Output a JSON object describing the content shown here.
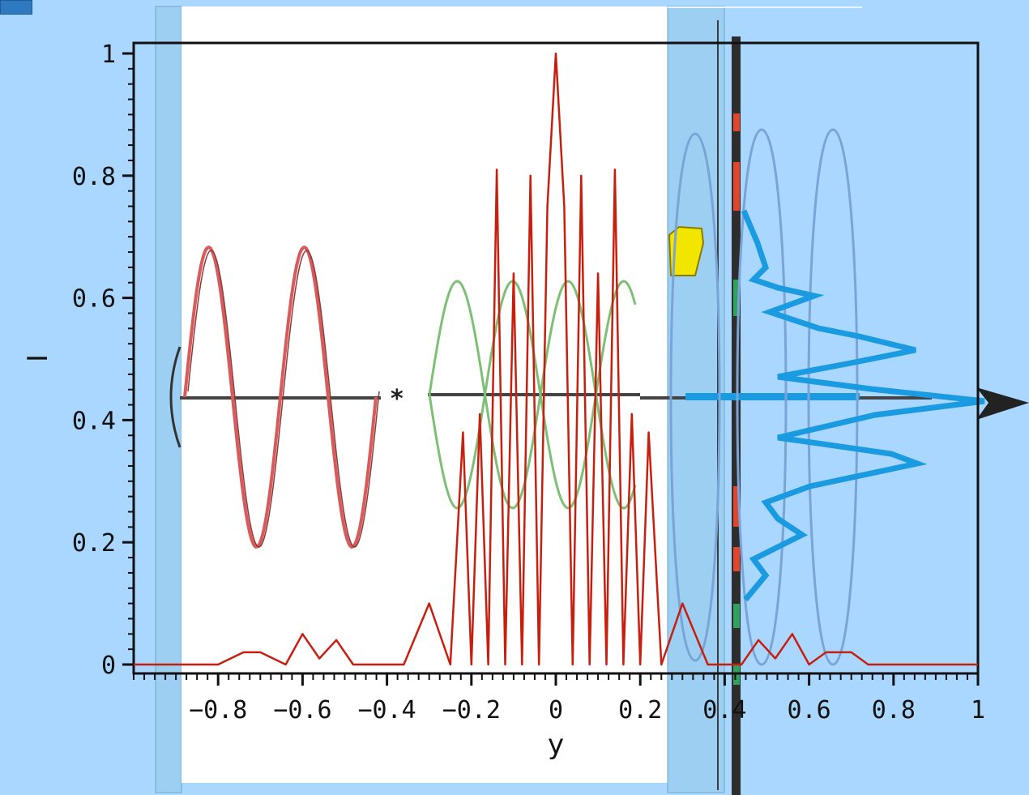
{
  "chart_data": {
    "type": "line",
    "title": "",
    "xlabel": "y",
    "ylabel": "I",
    "xlim": [
      -1,
      1
    ],
    "ylim": [
      0,
      1
    ],
    "x_ticks": [
      -0.8,
      -0.6,
      -0.4,
      -0.2,
      0,
      0.2,
      0.4,
      0.6,
      0.8,
      1
    ],
    "x_tick_labels": [
      "−0.8",
      "−0.6",
      "−0.4",
      "−0.2",
      "0",
      "0.2",
      "0.4",
      "0.6",
      "0.8",
      "1"
    ],
    "y_ticks": [
      0,
      0.2,
      0.4,
      0.6,
      0.8,
      1
    ],
    "y_tick_labels": [
      "0",
      "0.2",
      "0.4",
      "0.6",
      "0.8",
      "1"
    ],
    "grid": false,
    "series": [
      {
        "color": "#c81e0e",
        "x": [
          -1.0,
          -0.8,
          -0.74,
          -0.7,
          -0.64,
          -0.6,
          -0.56,
          -0.52,
          -0.48,
          -0.44,
          -0.36,
          -0.3,
          -0.25,
          -0.22,
          -0.2,
          -0.18,
          -0.16,
          -0.14,
          -0.12,
          -0.1,
          -0.08,
          -0.06,
          -0.04,
          -0.02,
          0,
          0.02,
          0.04,
          0.06,
          0.08,
          0.1,
          0.12,
          0.14,
          0.16,
          0.18,
          0.2,
          0.22,
          0.25,
          0.3,
          0.36,
          0.44,
          0.48,
          0.52,
          0.56,
          0.6,
          0.64,
          0.7,
          0.74,
          0.8,
          1.0
        ],
        "y": [
          0.0,
          0.0,
          0.02,
          0.02,
          0.0,
          0.05,
          0.01,
          0.04,
          0.0,
          0.0,
          0.0,
          0.1,
          0.0,
          0.38,
          0.0,
          0.41,
          0.0,
          0.81,
          0.0,
          0.64,
          0.0,
          0.8,
          0.0,
          0.75,
          1.0,
          0.75,
          0.0,
          0.8,
          0.0,
          0.64,
          0.0,
          0.81,
          0.0,
          0.41,
          0.0,
          0.38,
          0.0,
          0.1,
          0.0,
          0.0,
          0.04,
          0.01,
          0.05,
          0.0,
          0.02,
          0.02,
          0.0,
          0.0,
          0.0
        ]
      }
    ]
  },
  "colors": {
    "page_background": "#a9d7ff",
    "panel_white": "#ffffff",
    "panel_glass": "#9ccff2",
    "intensity_line": "#c81e0e",
    "red_wave": "#d85a5a",
    "green_wave": "#7dbf75",
    "blue_wave": "#7aa4d8",
    "histogram_blue": "#1a9ae0",
    "screen_bar": "#2d2d2d",
    "marker_yellow": "#f2e600"
  },
  "overlay_icons": [
    "double-slit-wave-illustration-icon",
    "detector-screen-icon",
    "arrow-right-icon",
    "yellow-source-icon",
    "plus-icon"
  ]
}
